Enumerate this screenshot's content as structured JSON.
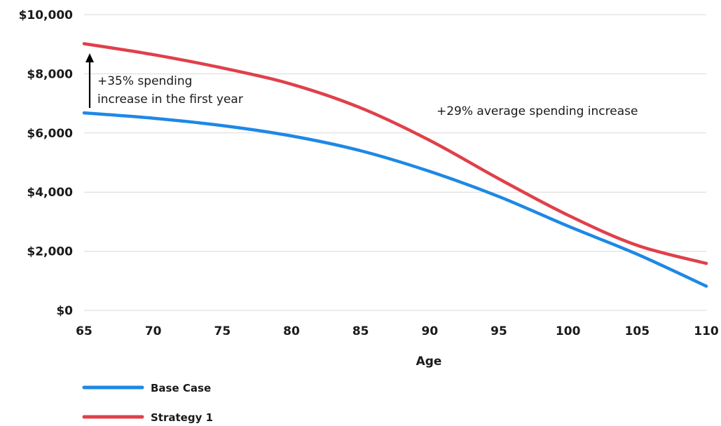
{
  "chart_data": {
    "type": "line",
    "title": "",
    "xlabel": "Age",
    "ylabel": "",
    "xlim": [
      65,
      110
    ],
    "ylim": [
      0,
      10000
    ],
    "grid": "horizontal",
    "legend_position": "bottom-left",
    "x_ticks": [
      "65",
      "70",
      "75",
      "80",
      "85",
      "90",
      "95",
      "100",
      "105",
      "110"
    ],
    "y_ticks": [
      {
        "value": 0,
        "label": "$0"
      },
      {
        "value": 2000,
        "label": "$2,000"
      },
      {
        "value": 4000,
        "label": "$4,000"
      },
      {
        "value": 6000,
        "label": "$6,000"
      },
      {
        "value": 8000,
        "label": "$8,000"
      },
      {
        "value": 10000,
        "label": "$10,000"
      }
    ],
    "x": [
      65,
      70,
      75,
      80,
      85,
      90,
      95,
      100,
      105,
      110
    ],
    "series": [
      {
        "name": "Base Case",
        "color": "#1e88e5",
        "values": [
          6680,
          6500,
          6250,
          5900,
          5400,
          4700,
          3850,
          2850,
          1900,
          820
        ]
      },
      {
        "name": "Strategy 1",
        "color": "#e0404a",
        "values": [
          9020,
          8650,
          8200,
          7650,
          6850,
          5750,
          4450,
          3220,
          2200,
          1590
        ]
      }
    ],
    "annotations": [
      {
        "id": "first_year",
        "lines": [
          "+35% spending",
          "increase in the first year"
        ]
      },
      {
        "id": "average",
        "lines": [
          "+29% average spending increase"
        ]
      }
    ]
  }
}
